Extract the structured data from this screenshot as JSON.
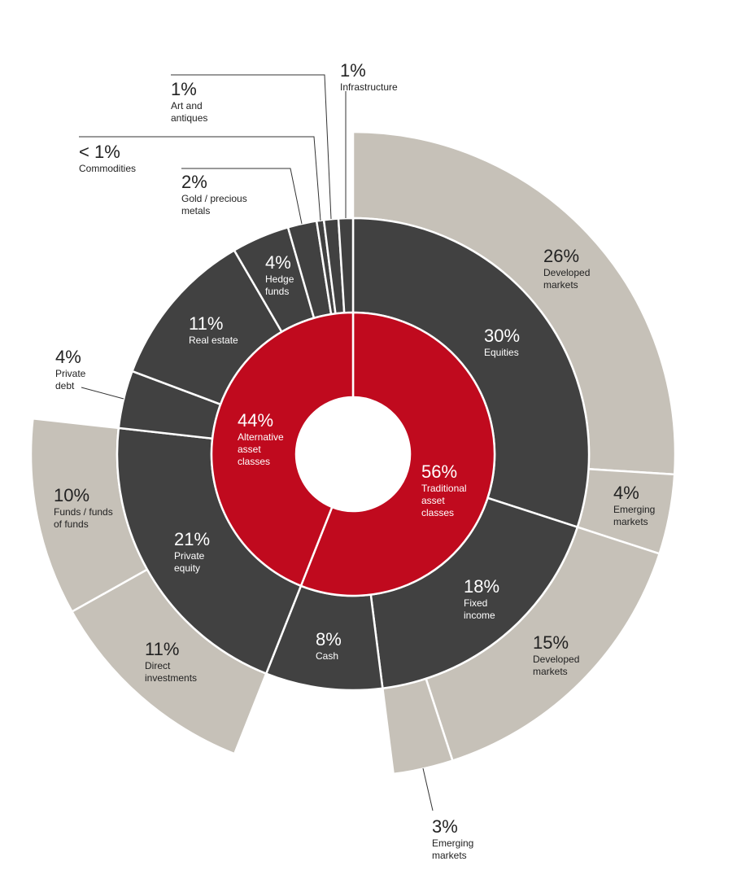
{
  "chart_data": {
    "type": "sunburst",
    "title": "",
    "colors": {
      "inner": "#c00a1e",
      "middle": "#414141",
      "outer": "#c6c1b8",
      "text_light": "#ffffff",
      "text_dark": "#222222",
      "separator": "#ffffff"
    },
    "inner": [
      {
        "id": "trad",
        "value": 56,
        "label": "56%",
        "name": [
          "Traditional",
          "asset",
          "classes"
        ]
      },
      {
        "id": "alt",
        "value": 44,
        "label": "44%",
        "name": [
          "Alternative",
          "asset",
          "classes"
        ]
      }
    ],
    "middle": [
      {
        "id": "equities",
        "value": 30,
        "label": "30%",
        "name": [
          "Equities"
        ]
      },
      {
        "id": "fixed",
        "value": 18,
        "label": "18%",
        "name": [
          "Fixed",
          "income"
        ]
      },
      {
        "id": "cash",
        "value": 8,
        "label": "8%",
        "name": [
          "Cash"
        ]
      },
      {
        "id": "pe",
        "value": 21,
        "label": "21%",
        "name": [
          "Private",
          "equity"
        ]
      },
      {
        "id": "pdebt",
        "value": 4,
        "label": "4%",
        "name": [
          "Private",
          "debt"
        ]
      },
      {
        "id": "re",
        "value": 11,
        "label": "11%",
        "name": [
          "Real estate"
        ]
      },
      {
        "id": "hedge",
        "value": 4,
        "label": "4%",
        "name": [
          "Hedge",
          "funds"
        ]
      },
      {
        "id": "gold",
        "value": 2,
        "label": "2%",
        "name": [
          "Gold / precious",
          "metals"
        ]
      },
      {
        "id": "comm",
        "value": 0.5,
        "label": "< 1%",
        "name": [
          "Commodities"
        ]
      },
      {
        "id": "art",
        "value": 1,
        "label": "1%",
        "name": [
          "Art and",
          "antiques"
        ]
      },
      {
        "id": "infra",
        "value": 1,
        "label": "1%",
        "name": [
          "Infrastructure"
        ]
      }
    ],
    "outer": [
      {
        "id": "eq-dev",
        "parent": "equities",
        "value": 26,
        "label": "26%",
        "name": [
          "Developed",
          "markets"
        ]
      },
      {
        "id": "eq-em",
        "parent": "equities",
        "value": 4,
        "label": "4%",
        "name": [
          "Emerging",
          "markets"
        ]
      },
      {
        "id": "fi-dev",
        "parent": "fixed",
        "value": 15,
        "label": "15%",
        "name": [
          "Developed",
          "markets"
        ]
      },
      {
        "id": "fi-em",
        "parent": "fixed",
        "value": 3,
        "label": "3%",
        "name": [
          "Emerging",
          "markets"
        ]
      },
      {
        "id": "pe-direct",
        "parent": "pe",
        "value": 11,
        "label": "11%",
        "name": [
          "Direct",
          "investments"
        ]
      },
      {
        "id": "pe-fof",
        "parent": "pe",
        "value": 10,
        "label": "10%",
        "name": [
          "Funds / funds",
          "of funds"
        ]
      }
    ]
  }
}
